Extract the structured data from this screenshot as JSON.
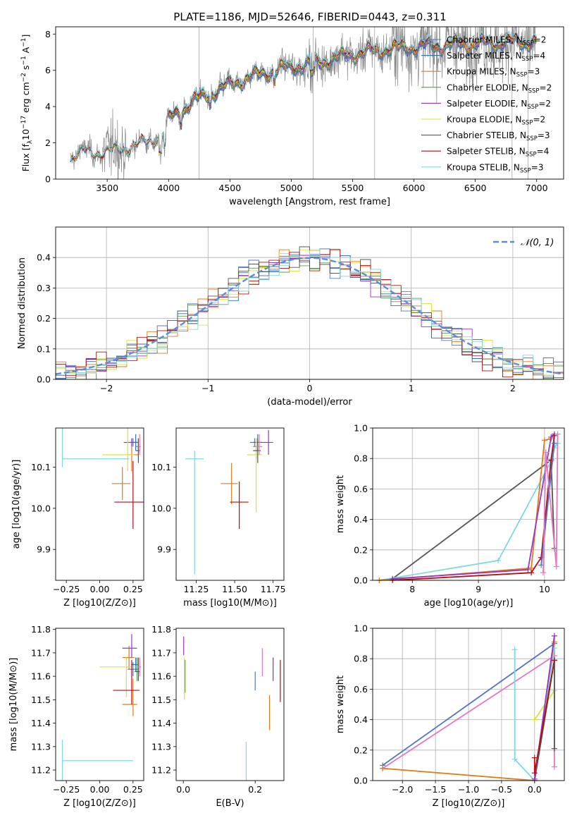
{
  "figure_title": "PLATE=1186, MJD=52646, FIBERID=0443, z=0.311",
  "legend_spectrum": [
    {
      "name": "Chabrier MILES, N",
      "sub": "SSP",
      "tail": "=2",
      "color": "#4f74c9"
    },
    {
      "name": "Salpeter MILES, N",
      "sub": "SSP",
      "tail": "=4",
      "color": "#2f6fb0"
    },
    {
      "name": "Kroupa MILES, N",
      "sub": "SSP",
      "tail": "=3",
      "color": "#e07b1c"
    },
    {
      "name": "Chabrier ELODIE, N",
      "sub": "SSP",
      "tail": "=2",
      "color": "#5a9a5a"
    },
    {
      "name": "Salpeter ELODIE, N",
      "sub": "SSP",
      "tail": "=2",
      "color": "#9b35c6"
    },
    {
      "name": "Kroupa ELODIE, N",
      "sub": "SSP",
      "tail": "=2",
      "color": "#d7e23a"
    },
    {
      "name": "Chabrier STELIB, N",
      "sub": "SSP",
      "tail": "=3",
      "color": "#555555"
    },
    {
      "name": "Salpeter STELIB, N",
      "sub": "SSP",
      "tail": "=4",
      "color": "#b01010"
    },
    {
      "name": "Kroupa STELIB, N",
      "sub": "SSP",
      "tail": "=3",
      "color": "#7fd8e0"
    }
  ],
  "legend_hist": {
    "label": "𝒩(0, 1)",
    "color": "#5b8ed6"
  },
  "chart_data": [
    {
      "id": "spectrum",
      "type": "line",
      "xlabel": "wavelength [Angstrom, rest frame]",
      "ylabel": "Flux [f_λ 10^-17 erg cm^-2 s^-1 A^-1]",
      "xlim": [
        3080,
        7220
      ],
      "ylim": [
        0,
        8.4
      ],
      "xticks": [
        3500,
        4000,
        4500,
        5000,
        5500,
        6000,
        6500,
        7000
      ],
      "yticks": [
        0,
        2,
        4,
        6,
        8
      ],
      "data_range": [
        3200,
        7000
      ],
      "continuum": [
        [
          3200,
          1.2
        ],
        [
          3300,
          1.5
        ],
        [
          3500,
          1.5
        ],
        [
          3700,
          1.8
        ],
        [
          3850,
          2.1
        ],
        [
          3950,
          2.5
        ],
        [
          4000,
          3.3
        ],
        [
          4100,
          3.8
        ],
        [
          4200,
          4.3
        ],
        [
          4400,
          4.9
        ],
        [
          4600,
          5.5
        ],
        [
          4800,
          5.9
        ],
        [
          5000,
          6.2
        ],
        [
          5200,
          6.4
        ],
        [
          5500,
          6.9
        ],
        [
          5800,
          7.2
        ],
        [
          6000,
          7.3
        ],
        [
          6500,
          7.5
        ],
        [
          7000,
          7.6
        ]
      ],
      "grid": false
    },
    {
      "id": "residual_histogram",
      "type": "line",
      "xlabel": "(data-model)/error",
      "ylabel": "Normed distribution",
      "xlim": [
        -2.5,
        2.5
      ],
      "ylim": [
        0,
        0.5
      ],
      "xticks": [
        -2,
        -1,
        0,
        1,
        2
      ],
      "yticks": [
        0.0,
        0.1,
        0.2,
        0.3,
        0.4
      ],
      "bin_width": 0.1,
      "series_reference": {
        "name": "𝒩(0, 1)",
        "mean": 0,
        "sigma": 1
      },
      "grid": true,
      "legend": "top-right"
    },
    {
      "id": "age_vs_Z",
      "type": "scatter",
      "xlabel": "Z [log10(Z/Z⊙)]",
      "ylabel": "age [log10(age/yr)]",
      "xlim": [
        -0.33,
        0.33
      ],
      "ylim": [
        9.825,
        10.195
      ],
      "xticks": [
        -0.25,
        0.0,
        0.25
      ],
      "yticks": [
        9.9,
        10.0,
        10.1
      ],
      "points": [
        {
          "x": 0.25,
          "y": 10.16,
          "xerr": [
            0.05,
            0.03
          ],
          "yerr": [
            0.01,
            0.01
          ],
          "color": "#4f74c9"
        },
        {
          "x": 0.27,
          "y": 10.16,
          "xerr": [
            0.03,
            0.02
          ],
          "yerr": [
            0.02,
            0.02
          ],
          "color": "#2f6fb0"
        },
        {
          "x": 0.24,
          "y": 10.13,
          "xerr": [
            0.04,
            0.05
          ],
          "yerr": [
            0.04,
            0.04
          ],
          "color": "#e07b1c"
        },
        {
          "x": 0.17,
          "y": 10.06,
          "xerr": [
            0.08,
            0.06
          ],
          "yerr": [
            0.04,
            0.04
          ],
          "color": "#e07b1c"
        },
        {
          "x": 0.29,
          "y": 10.15,
          "xerr": [
            0.02,
            0.01
          ],
          "yerr": [
            0.03,
            0.02
          ],
          "color": "#5a9a5a"
        },
        {
          "x": 0.24,
          "y": 10.16,
          "xerr": [
            0.06,
            0.04
          ],
          "yerr": [
            0.01,
            0.01
          ],
          "color": "#9b35c6"
        },
        {
          "x": 0.21,
          "y": 10.13,
          "xerr": [
            0.19,
            0.05
          ],
          "yerr": [
            0.04,
            0.13
          ],
          "color": "#d7e23a"
        },
        {
          "x": 0.29,
          "y": 10.14,
          "xerr": [
            0.02,
            0.01
          ],
          "yerr": [
            0.03,
            0.03
          ],
          "color": "#555555"
        },
        {
          "x": 0.25,
          "y": 10.015,
          "xerr": [
            0.14,
            0.08
          ],
          "yerr": [
            0.065,
            0.1
          ],
          "color": "#b01010"
        },
        {
          "x": -0.28,
          "y": 10.12,
          "xerr": [
            0.0,
            0.5
          ],
          "yerr": [
            0.02,
            0.28
          ],
          "color": "#7fd8e0"
        },
        {
          "x": 0.3,
          "y": 10.15,
          "xerr": [
            0.01,
            0.01
          ],
          "yerr": [
            0.02,
            0.03
          ],
          "color": "#e377c2"
        }
      ]
    },
    {
      "id": "age_vs_mass",
      "type": "scatter",
      "xlabel": "mass [log10(M/M⊙)]",
      "ylabel": "",
      "xlim": [
        11.12,
        11.82
      ],
      "ylim": [
        9.825,
        10.195
      ],
      "xticks": [
        11.25,
        11.5,
        11.75
      ],
      "yticks": [
        9.9,
        10.0,
        10.1
      ],
      "points": [
        {
          "x": 11.63,
          "y": 10.16,
          "xerr": [
            0.03,
            0.03
          ],
          "yerr": [
            0.01,
            0.01
          ],
          "color": "#4f74c9"
        },
        {
          "x": 11.65,
          "y": 10.16,
          "xerr": [
            0.03,
            0.03
          ],
          "yerr": [
            0.02,
            0.02
          ],
          "color": "#2f6fb0"
        },
        {
          "x": 11.48,
          "y": 10.06,
          "xerr": [
            0.07,
            0.04
          ],
          "yerr": [
            0.05,
            0.05
          ],
          "color": "#e07b1c"
        },
        {
          "x": 11.64,
          "y": 10.15,
          "xerr": [
            0.02,
            0.02
          ],
          "yerr": [
            0.03,
            0.02
          ],
          "color": "#5a9a5a"
        },
        {
          "x": 11.72,
          "y": 10.16,
          "xerr": [
            0.07,
            0.03
          ],
          "yerr": [
            0.03,
            0.03
          ],
          "color": "#9b35c6"
        },
        {
          "x": 11.64,
          "y": 10.13,
          "xerr": [
            0.06,
            0.04
          ],
          "yerr": [
            0.14,
            0.04
          ],
          "color": "#d7e23a"
        },
        {
          "x": 11.65,
          "y": 10.14,
          "xerr": [
            0.03,
            0.02
          ],
          "yerr": [
            0.03,
            0.03
          ],
          "color": "#555555"
        },
        {
          "x": 11.53,
          "y": 10.015,
          "xerr": [
            0.06,
            0.06
          ],
          "yerr": [
            0.065,
            0.05
          ],
          "color": "#b01010"
        },
        {
          "x": 11.24,
          "y": 10.12,
          "xerr": [
            0.06,
            0.06
          ],
          "yerr": [
            0.28,
            0.02
          ],
          "color": "#7fd8e0"
        },
        {
          "x": 11.66,
          "y": 10.15,
          "xerr": [
            0.02,
            0.02
          ],
          "yerr": [
            0.02,
            0.03
          ],
          "color": "#e377c2"
        }
      ]
    },
    {
      "id": "weight_vs_age",
      "type": "line",
      "xlabel": "age [log10(age/yr)]",
      "ylabel": "mass weight",
      "xlim": [
        7.4,
        10.3
      ],
      "ylim": [
        0,
        1.0
      ],
      "xticks": [
        8,
        9,
        10
      ],
      "yticks": [
        0.0,
        0.2,
        0.4,
        0.6,
        0.8,
        1.0
      ],
      "grid": true,
      "series": [
        {
          "color": "#555555",
          "points": [
            [
              7.7,
              0.01
            ],
            [
              10.1,
              0.79
            ],
            [
              10.15,
              0.21
            ]
          ]
        },
        {
          "color": "#7fd8e0",
          "points": [
            [
              7.5,
              0.0
            ],
            [
              9.3,
              0.13
            ],
            [
              10.1,
              0.78
            ],
            [
              10.15,
              0.87
            ],
            [
              10.2,
              0.9
            ]
          ]
        },
        {
          "color": "#e07b1c",
          "points": [
            [
              7.5,
              0.0
            ],
            [
              9.8,
              0.08
            ],
            [
              10.0,
              0.92
            ],
            [
              10.1,
              0.93
            ]
          ]
        },
        {
          "color": "#9b35c6",
          "points": [
            [
              7.7,
              0.01
            ],
            [
              9.75,
              0.07
            ],
            [
              10.1,
              0.94
            ],
            [
              10.15,
              0.96
            ]
          ]
        },
        {
          "color": "#b01010",
          "points": [
            [
              7.7,
              0.0
            ],
            [
              9.8,
              0.05
            ],
            [
              9.95,
              0.15
            ],
            [
              10.1,
              0.79
            ],
            [
              10.15,
              0.95
            ]
          ]
        },
        {
          "color": "#4f74c9",
          "points": [
            [
              9.95,
              0.1
            ],
            [
              10.15,
              0.9
            ]
          ]
        },
        {
          "color": "#e377c2",
          "points": [
            [
              9.98,
              0.05
            ],
            [
              10.02,
              0.84
            ],
            [
              10.18,
              0.09
            ],
            [
              10.2,
              0.96
            ]
          ]
        }
      ]
    },
    {
      "id": "mass_vs_Z",
      "type": "scatter",
      "xlabel": "Z [log10(Z/Z⊙)]",
      "ylabel": "mass [log10(M/M⊙)]",
      "xlim": [
        -0.33,
        0.33
      ],
      "ylim": [
        11.155,
        11.805
      ],
      "xticks": [
        -0.25,
        0.0,
        0.25
      ],
      "yticks": [
        11.2,
        11.3,
        11.4,
        11.5,
        11.6,
        11.7,
        11.8
      ],
      "points": [
        {
          "x": 0.25,
          "y": 11.63,
          "xerr": [
            0.04,
            0.04
          ],
          "yerr": [
            0.03,
            0.03
          ],
          "color": "#4f74c9"
        },
        {
          "x": 0.27,
          "y": 11.65,
          "xerr": [
            0.03,
            0.02
          ],
          "yerr": [
            0.03,
            0.03
          ],
          "color": "#2f6fb0"
        },
        {
          "x": 0.22,
          "y": 11.68,
          "xerr": [
            0.05,
            0.04
          ],
          "yerr": [
            0.05,
            0.05
          ],
          "color": "#e07b1c"
        },
        {
          "x": 0.25,
          "y": 11.48,
          "xerr": [
            0.08,
            0.03
          ],
          "yerr": [
            0.05,
            0.11
          ],
          "color": "#e07b1c"
        },
        {
          "x": 0.28,
          "y": 11.62,
          "xerr": [
            0.02,
            0.01
          ],
          "yerr": [
            0.04,
            0.06
          ],
          "color": "#5a9a5a"
        },
        {
          "x": 0.24,
          "y": 11.72,
          "xerr": [
            0.07,
            0.04
          ],
          "yerr": [
            0.04,
            0.06
          ],
          "color": "#9b35c6"
        },
        {
          "x": 0.2,
          "y": 11.64,
          "xerr": [
            0.2,
            0.07
          ],
          "yerr": [
            0.13,
            0.04
          ],
          "color": "#d7e23a"
        },
        {
          "x": 0.29,
          "y": 11.62,
          "xerr": [
            0.02,
            0.01
          ],
          "yerr": [
            0.04,
            0.06
          ],
          "color": "#555555"
        },
        {
          "x": 0.24,
          "y": 11.54,
          "xerr": [
            0.14,
            0.06
          ],
          "yerr": [
            0.06,
            0.13
          ],
          "color": "#b01010"
        },
        {
          "x": -0.28,
          "y": 11.24,
          "xerr": [
            0.0,
            0.53
          ],
          "yerr": [
            0.09,
            0.09
          ],
          "color": "#7fd8e0"
        },
        {
          "x": 0.3,
          "y": 11.64,
          "xerr": [
            0.01,
            0.01
          ],
          "yerr": [
            0.04,
            0.04
          ],
          "color": "#e377c2"
        }
      ]
    },
    {
      "id": "mass_vs_ebv",
      "type": "scatter",
      "xlabel": "E(B-V)",
      "ylabel": "",
      "xlim": [
        -0.02,
        0.28
      ],
      "ylim": [
        11.155,
        11.805
      ],
      "xticks": [
        0.0,
        0.2
      ],
      "yticks": [
        11.2,
        11.3,
        11.4,
        11.5,
        11.6,
        11.7,
        11.8
      ],
      "points": [
        {
          "x": 0.2,
          "y": 11.58,
          "xerr": [
            0,
            0
          ],
          "yerr": [
            0.04,
            0.04
          ],
          "color": "#4f74c9"
        },
        {
          "x": 0.24,
          "y": 11.44,
          "xerr": [
            0,
            0
          ],
          "yerr": [
            0.07,
            0.08
          ],
          "color": "#e07b1c"
        },
        {
          "x": 0.001,
          "y": 11.73,
          "xerr": [
            0,
            0
          ],
          "yerr": [
            0.04,
            0.04
          ],
          "color": "#9b35c6"
        },
        {
          "x": 0.005,
          "y": 11.6,
          "xerr": [
            0,
            0
          ],
          "yerr": [
            0.07,
            0.07
          ],
          "color": "#5a9a5a"
        },
        {
          "x": 0.003,
          "y": 11.6,
          "xerr": [
            0,
            0
          ],
          "yerr": [
            0.1,
            0.08
          ],
          "color": "#d7e23a"
        },
        {
          "x": 0.25,
          "y": 11.63,
          "xerr": [
            0,
            0
          ],
          "yerr": [
            0.05,
            0.05
          ],
          "color": "#555555"
        },
        {
          "x": 0.27,
          "y": 11.58,
          "xerr": [
            0,
            0
          ],
          "yerr": [
            0.09,
            0.09
          ],
          "color": "#b01010"
        },
        {
          "x": 0.175,
          "y": 11.24,
          "xerr": [
            0,
            0
          ],
          "yerr": [
            0.09,
            0.08
          ],
          "color": "#7fd8e0"
        },
        {
          "x": 0.22,
          "y": 11.66,
          "xerr": [
            0,
            0
          ],
          "yerr": [
            0.06,
            0.06
          ],
          "color": "#e377c2"
        }
      ]
    },
    {
      "id": "weight_vs_Z",
      "type": "line",
      "xlabel": "Z [log10(Z/Z⊙)]",
      "ylabel": "mass weight",
      "xlim": [
        -2.45,
        0.45
      ],
      "ylim": [
        0,
        1.0
      ],
      "xticks": [
        -2.0,
        -1.5,
        -1.0,
        -0.5,
        0.0
      ],
      "yticks": [
        0.0,
        0.2,
        0.4,
        0.6,
        0.8,
        1.0
      ],
      "grid": true,
      "series": [
        {
          "color": "#4f74c9",
          "points": [
            [
              -2.3,
              0.1
            ],
            [
              0.3,
              0.9
            ]
          ]
        },
        {
          "color": "#e377c2",
          "points": [
            [
              -2.3,
              0.08
            ],
            [
              0.3,
              0.82
            ],
            [
              0.3,
              0.09
            ],
            [
              0.3,
              0.95
            ]
          ]
        },
        {
          "color": "#e07b1c",
          "points": [
            [
              -2.3,
              0.08
            ],
            [
              0.0,
              0.0
            ],
            [
              0.3,
              0.91
            ]
          ]
        },
        {
          "color": "#7fd8e0",
          "points": [
            [
              -0.3,
              0.86
            ],
            [
              -0.3,
              0.14
            ],
            [
              0.0,
              0.0
            ],
            [
              0.3,
              0.87
            ]
          ]
        },
        {
          "color": "#d7e23a",
          "points": [
            [
              0.0,
              0.4
            ],
            [
              0.3,
              0.59
            ]
          ]
        },
        {
          "color": "#555555",
          "points": [
            [
              0.0,
              0.0
            ],
            [
              0.3,
              0.79
            ],
            [
              0.3,
              0.21
            ]
          ]
        },
        {
          "color": "#9b35c6",
          "points": [
            [
              0.0,
              0.01
            ],
            [
              0.3,
              0.95
            ]
          ]
        },
        {
          "color": "#b01010",
          "points": [
            [
              0.0,
              0.15
            ],
            [
              0.0,
              0.05
            ],
            [
              0.3,
              0.79
            ]
          ]
        }
      ]
    }
  ]
}
